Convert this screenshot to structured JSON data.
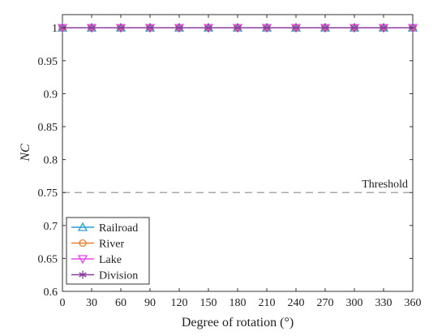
{
  "chart_data": {
    "type": "line",
    "xlabel": "Degree of rotation (°)",
    "ylabel": "NC",
    "x": [
      0,
      30,
      60,
      90,
      120,
      150,
      180,
      210,
      240,
      270,
      300,
      330,
      360
    ],
    "xlim": [
      0,
      360
    ],
    "ylim": [
      0.6,
      1.02
    ],
    "xticks": [
      "0",
      "30",
      "60",
      "90",
      "120",
      "150",
      "180",
      "210",
      "240",
      "270",
      "300",
      "330",
      "360"
    ],
    "yticks": [
      "0.6",
      "0.65",
      "0.7",
      "0.75",
      "0.8",
      "0.85",
      "0.9",
      "0.95",
      "1"
    ],
    "grid": false,
    "legend_position": "bottom-left",
    "series": [
      {
        "name": "Railroad",
        "marker": "triangle-up",
        "color": "#2a9fd6",
        "values": [
          1,
          1,
          1,
          1,
          1,
          1,
          1,
          1,
          1,
          1,
          1,
          1,
          1
        ]
      },
      {
        "name": "River",
        "marker": "circle",
        "color": "#f08030",
        "values": [
          1,
          1,
          1,
          1,
          1,
          1,
          1,
          1,
          1,
          1,
          1,
          1,
          1
        ]
      },
      {
        "name": "Lake",
        "marker": "triangle-down",
        "color": "#ee44ee",
        "values": [
          1,
          1,
          1,
          1,
          1,
          1,
          1,
          1,
          1,
          1,
          1,
          1,
          1
        ]
      },
      {
        "name": "Division",
        "marker": "asterisk",
        "color": "#8a3fa0",
        "values": [
          1,
          1,
          1,
          1,
          1,
          1,
          1,
          1,
          1,
          1,
          1,
          1,
          1
        ]
      }
    ],
    "threshold": {
      "label": "Threshold",
      "value": 0.75,
      "color": "#999999"
    }
  }
}
